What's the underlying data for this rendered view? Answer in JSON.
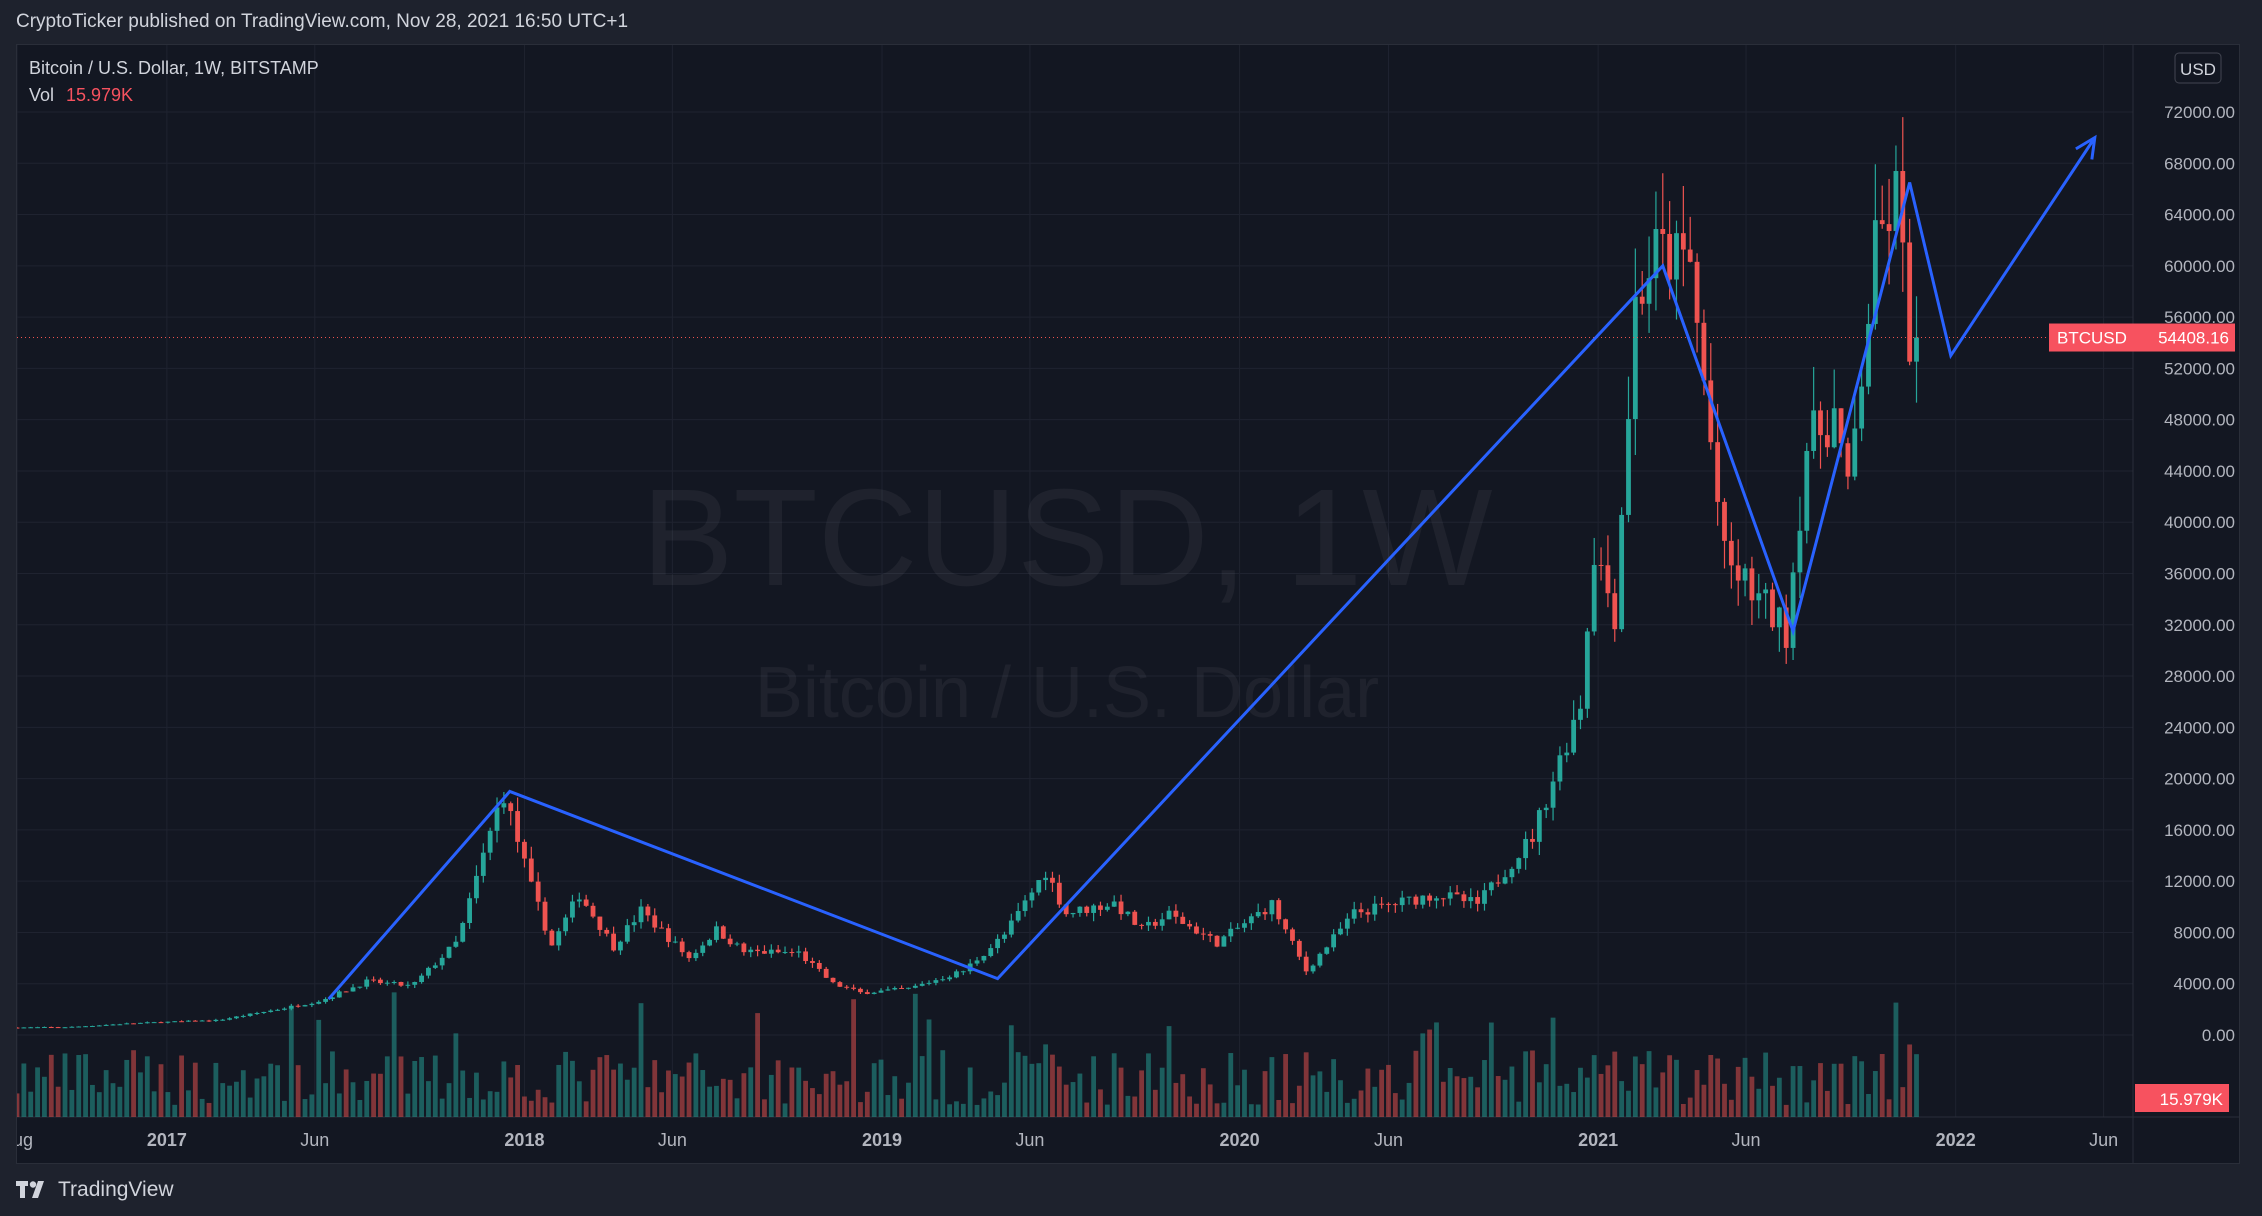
{
  "header": {
    "published_text": "CryptoTicker published on TradingView.com, Nov 28, 2021 16:50 UTC+1"
  },
  "legend": {
    "symbol_line": "Bitcoin / U.S. Dollar, 1W, BITSTAMP",
    "vol_label": "Vol",
    "vol_value": "15.979K"
  },
  "watermark": {
    "line1": "BTCUSD, 1W",
    "line2": "Bitcoin / U.S. Dollar"
  },
  "price_scale": {
    "currency": "USD",
    "ticks": [
      "72000.00",
      "68000.00",
      "64000.00",
      "60000.00",
      "56000.00",
      "52000.00",
      "48000.00",
      "44000.00",
      "40000.00",
      "36000.00",
      "32000.00",
      "28000.00",
      "24000.00",
      "20000.00",
      "16000.00",
      "12000.00",
      "8000.00",
      "4000.00",
      "0.00"
    ]
  },
  "last_price": {
    "symbol": "BTCUSD",
    "value": "54408.16",
    "color": "#f7525f"
  },
  "volume_badge": {
    "value": "15.979K",
    "color": "#f7525f"
  },
  "time_axis": {
    "labels": [
      "Aug",
      "2017",
      "Jun",
      "2018",
      "Jun",
      "2019",
      "Jun",
      "2020",
      "Jun",
      "2021",
      "Jun",
      "2022",
      "Jun"
    ]
  },
  "footer": {
    "brand": "TradingView"
  },
  "colors": {
    "up": "#26a69a",
    "down": "#ef5350",
    "drawing": "#2962ff",
    "background": "#131722"
  },
  "chart_data": {
    "type": "candlestick",
    "timeframe": "1W",
    "symbol": "BTCUSD",
    "exchange": "BITSTAMP",
    "x_range": [
      "2016-08",
      "2022-07"
    ],
    "y_range": [
      0,
      76000
    ],
    "last_close": 54408.16,
    "last_volume": "15.979K",
    "price_path": [
      {
        "date": "2016-08-01",
        "close": 580
      },
      {
        "date": "2016-10-01",
        "close": 620
      },
      {
        "date": "2016-12-01",
        "close": 900
      },
      {
        "date": "2017-01-01",
        "close": 1000
      },
      {
        "date": "2017-03-01",
        "close": 1150
      },
      {
        "date": "2017-05-01",
        "close": 2000
      },
      {
        "date": "2017-06-15",
        "close": 2700
      },
      {
        "date": "2017-08-01",
        "close": 4200
      },
      {
        "date": "2017-09-15",
        "close": 3800
      },
      {
        "date": "2017-11-01",
        "close": 7300
      },
      {
        "date": "2017-12-17",
        "close": 19100
      },
      {
        "date": "2018-01-15",
        "close": 11500
      },
      {
        "date": "2018-02-05",
        "close": 7000
      },
      {
        "date": "2018-03-05",
        "close": 11000
      },
      {
        "date": "2018-04-09",
        "close": 6900
      },
      {
        "date": "2018-05-07",
        "close": 9700
      },
      {
        "date": "2018-06-25",
        "close": 6000
      },
      {
        "date": "2018-07-23",
        "close": 8200
      },
      {
        "date": "2018-08-20",
        "close": 6500
      },
      {
        "date": "2018-10-15",
        "close": 6400
      },
      {
        "date": "2018-11-19",
        "close": 4000
      },
      {
        "date": "2018-12-17",
        "close": 3300
      },
      {
        "date": "2019-02-04",
        "close": 3600
      },
      {
        "date": "2019-04-01",
        "close": 5000
      },
      {
        "date": "2019-05-13",
        "close": 7800
      },
      {
        "date": "2019-06-24",
        "close": 12800
      },
      {
        "date": "2019-07-15",
        "close": 9500
      },
      {
        "date": "2019-09-02",
        "close": 10300
      },
      {
        "date": "2019-09-30",
        "close": 8200
      },
      {
        "date": "2019-10-28",
        "close": 9400
      },
      {
        "date": "2019-12-16",
        "close": 7200
      },
      {
        "date": "2020-02-10",
        "close": 10200
      },
      {
        "date": "2020-03-16",
        "close": 5000
      },
      {
        "date": "2020-05-04",
        "close": 9500
      },
      {
        "date": "2020-07-27",
        "close": 11000
      },
      {
        "date": "2020-09-07",
        "close": 10200
      },
      {
        "date": "2020-11-02",
        "close": 15500
      },
      {
        "date": "2020-12-21",
        "close": 26000
      },
      {
        "date": "2021-01-04",
        "close": 38000
      },
      {
        "date": "2021-01-25",
        "close": 33000
      },
      {
        "date": "2021-02-15",
        "close": 57000
      },
      {
        "date": "2021-03-08",
        "close": 61000
      },
      {
        "date": "2021-04-12",
        "close": 60000
      },
      {
        "date": "2021-05-17",
        "close": 37000
      },
      {
        "date": "2021-06-21",
        "close": 34000
      },
      {
        "date": "2021-07-19",
        "close": 31500
      },
      {
        "date": "2021-08-09",
        "close": 46000
      },
      {
        "date": "2021-09-06",
        "close": 48500
      },
      {
        "date": "2021-09-20",
        "close": 42000
      },
      {
        "date": "2021-10-18",
        "close": 61000
      },
      {
        "date": "2021-11-08",
        "close": 65500
      },
      {
        "date": "2021-11-22",
        "close": 54408.16
      }
    ],
    "drawing_path": [
      {
        "date": "2017-06-15",
        "price": 2800
      },
      {
        "date": "2017-12-17",
        "price": 19000
      },
      {
        "date": "2019-04-29",
        "price": 4400
      },
      {
        "date": "2021-03-08",
        "price": 60000
      },
      {
        "date": "2021-07-19",
        "price": 31500
      },
      {
        "date": "2021-11-15",
        "price": 66500
      },
      {
        "date": "2021-12-27",
        "price": 53000
      },
      {
        "date": "2022-05-23",
        "price": 70000
      }
    ]
  }
}
